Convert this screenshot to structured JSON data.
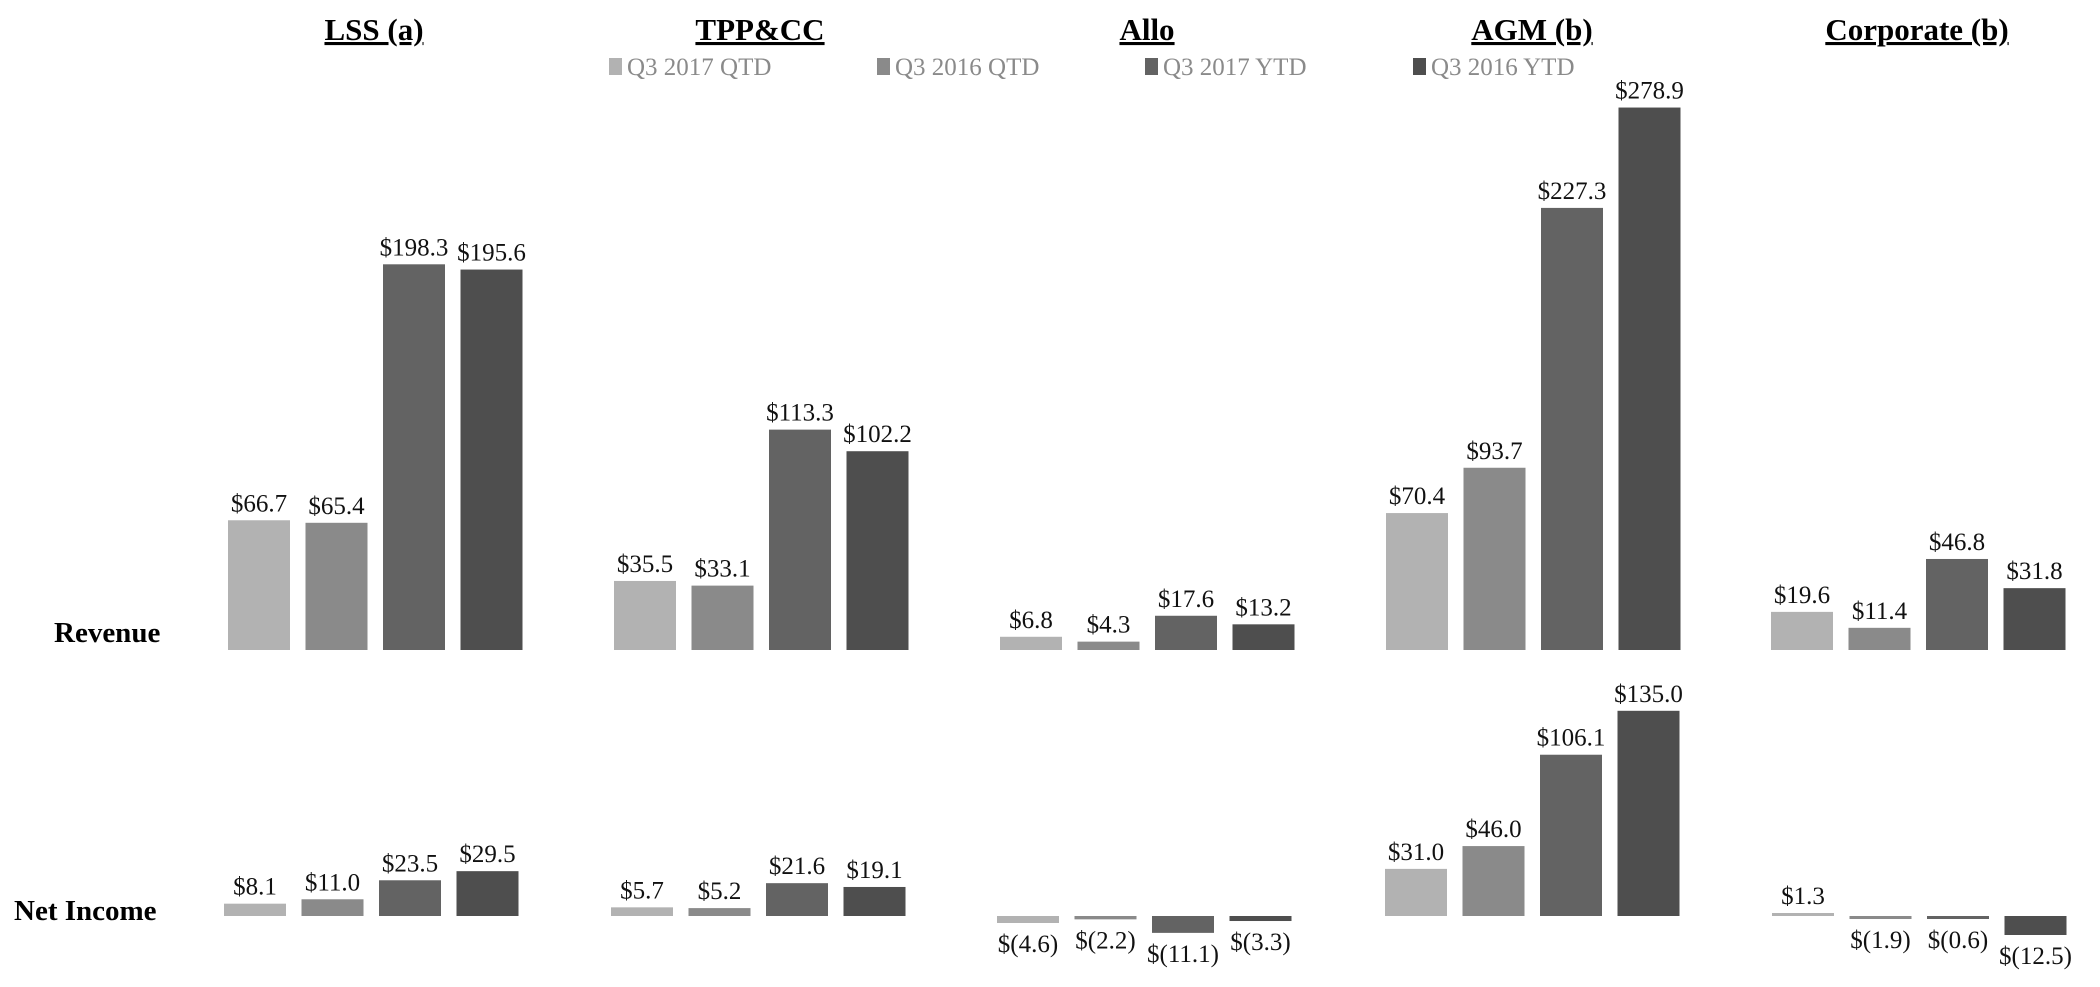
{
  "chart_data": {
    "type": "bar",
    "segments": [
      "LSS (a)",
      "TPP&CC",
      "Allo",
      "AGM (b)",
      "Corporate (b)"
    ],
    "rows": [
      "Revenue",
      "Net Income"
    ],
    "series": [
      {
        "name": "Q3 2017 QTD",
        "color": "#b2b2b2"
      },
      {
        "name": "Q3 2016 QTD",
        "color": "#8a8a8a"
      },
      {
        "name": "Q3 2017 YTD",
        "color": "#636363"
      },
      {
        "name": "Q3 2016 YTD",
        "color": "#4e4e4e"
      }
    ],
    "revenue": {
      "values": [
        [
          66.7,
          65.4,
          198.3,
          195.6
        ],
        [
          35.5,
          33.1,
          113.3,
          102.2
        ],
        [
          6.8,
          4.3,
          17.6,
          13.2
        ],
        [
          70.4,
          93.7,
          227.3,
          278.9
        ],
        [
          19.6,
          11.4,
          46.8,
          31.8
        ]
      ],
      "labels": [
        [
          "$66.7",
          "$65.4",
          "$198.3",
          "$195.6"
        ],
        [
          "$35.5",
          "$33.1",
          "$113.3",
          "$102.2"
        ],
        [
          "$6.8",
          "$4.3",
          "$17.6",
          "$13.2"
        ],
        [
          "$70.4",
          "$93.7",
          "$227.3",
          "$278.9"
        ],
        [
          "$19.6",
          "$11.4",
          "$46.8",
          "$31.8"
        ]
      ]
    },
    "net_income": {
      "values": [
        [
          8.1,
          11.0,
          23.5,
          29.5
        ],
        [
          5.7,
          5.2,
          21.6,
          19.1
        ],
        [
          -4.6,
          -2.2,
          -11.1,
          -3.3
        ],
        [
          31.0,
          46.0,
          106.1,
          135.0
        ],
        [
          1.3,
          -1.9,
          -0.6,
          -12.5
        ]
      ],
      "labels": [
        [
          "$8.1",
          "$11.0",
          "$23.5",
          "$29.5"
        ],
        [
          "$5.7",
          "$5.2",
          "$21.6",
          "$19.1"
        ],
        [
          "$(4.6)",
          "$(2.2)",
          "$(11.1)",
          "$(3.3)"
        ],
        [
          "$31.0",
          "$46.0",
          "$106.1",
          "$135.0"
        ],
        [
          "$1.3",
          "$(1.9)",
          "$(0.6)",
          "$(12.5)"
        ]
      ]
    },
    "legend": "top-center",
    "grid": false
  }
}
